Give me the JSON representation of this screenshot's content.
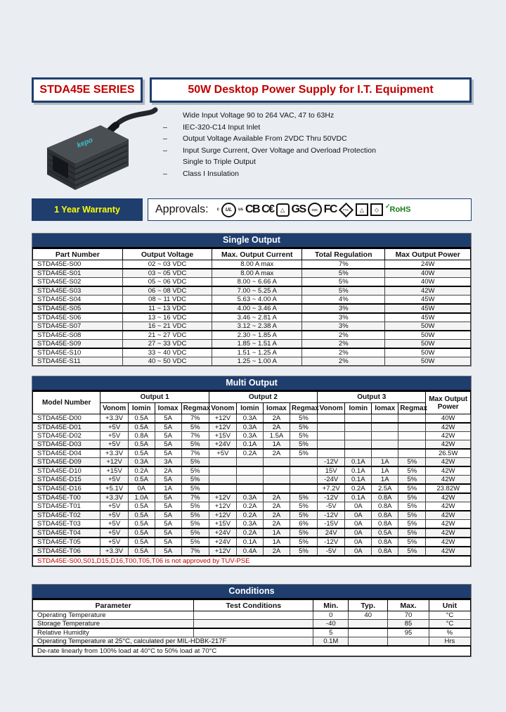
{
  "header": {
    "series_title": "STDA45E SERIES",
    "main_title": "50W Desktop Power Supply for I.T. Equipment"
  },
  "features": [
    {
      "dash": "",
      "text": "Wide Input Voltage 90 to 264 VAC, 47 to 63Hz"
    },
    {
      "dash": "–",
      "text": "IEC-320-C14 Input Inlet"
    },
    {
      "dash": "–",
      "text": "Output Voltage Available From 2VDC Thru 50VDC"
    },
    {
      "dash": "–",
      "text": "Input Surge Current, Over Voltage and Overload Protection"
    },
    {
      "dash": "",
      "text": "Single to Triple Output"
    },
    {
      "dash": "–",
      "text": "Class I Insulation"
    }
  ],
  "warranty": {
    "label": "1 Year Warranty"
  },
  "approvals": {
    "label": "Approvals:",
    "logos": [
      {
        "name": "c-mark-icon",
        "style": "tiny",
        "text": "c"
      },
      {
        "name": "ul-logo-icon",
        "style": "circle",
        "text": "UL"
      },
      {
        "name": "us-mark-icon",
        "style": "tiny",
        "text": "us"
      },
      {
        "name": "cb-logo-icon",
        "style": "letters",
        "text": "CB"
      },
      {
        "name": "ce-logo-icon",
        "style": "letters",
        "text": "C€"
      },
      {
        "name": "tuv-logo-icon",
        "style": "badge",
        "text": "△"
      },
      {
        "name": "gs-logo-icon",
        "style": "letters",
        "text": "GS"
      },
      {
        "name": "ccc-logo-icon",
        "style": "circle-sm",
        "text": "CCC"
      },
      {
        "name": "fcc-logo-icon",
        "style": "letters",
        "text": "FC"
      },
      {
        "name": "pse-diamond-logo-icon",
        "style": "diamond",
        "text": "PSE"
      },
      {
        "name": "pse-triangle-logo-icon",
        "style": "boxed",
        "text": "△"
      },
      {
        "name": "pse-rhombus-logo-icon",
        "style": "boxed",
        "text": "◇"
      },
      {
        "name": "rohs-check-icon",
        "style": "checkgreen",
        "text": "✓"
      },
      {
        "name": "rohs-logo-icon",
        "style": "rohs",
        "text": "RoHS"
      }
    ]
  },
  "single_output": {
    "title": "Single Output",
    "columns": [
      "Part Number",
      "Output Voltage",
      "Max. Output Current",
      "Total Regulation",
      "Max Output Power"
    ],
    "rows": [
      {
        "group": false,
        "cells": [
          "STDA45E-S00",
          "02 ~ 03 VDC",
          "8.00 A max",
          "7%",
          "24W"
        ]
      },
      {
        "group": true,
        "cells": [
          "STDA45E-S01",
          "03 ~ 05 VDC",
          "8.00 A max",
          "5%",
          "40W"
        ]
      },
      {
        "group": false,
        "cells": [
          "STDA45E-S02",
          "05 ~ 06 VDC",
          "8.00 ~ 6.66 A",
          "5%",
          "40W"
        ]
      },
      {
        "group": true,
        "cells": [
          "STDA45E-S03",
          "06 ~ 08 VDC",
          "7.00 ~ 5.25 A",
          "5%",
          "42W"
        ]
      },
      {
        "group": false,
        "cells": [
          "STDA45E-S04",
          "08 ~ 11 VDC",
          "5.63 ~ 4.00 A",
          "4%",
          "45W"
        ]
      },
      {
        "group": true,
        "cells": [
          "STDA45E-S05",
          "11 ~ 13 VDC",
          "4.00 ~ 3.46 A",
          "3%",
          "45W"
        ]
      },
      {
        "group": true,
        "cells": [
          "STDA45E-S06",
          "13 ~ 16 VDC",
          "3.46 ~ 2.81 A",
          "3%",
          "45W"
        ]
      },
      {
        "group": false,
        "cells": [
          "STDA45E-S07",
          "16 ~ 21 VDC",
          "3.12 ~ 2.38 A",
          "3%",
          "50W"
        ]
      },
      {
        "group": true,
        "cells": [
          "STDA45E-S08",
          "21 ~ 27 VDC",
          "2.30 ~ 1.85 A",
          "2%",
          "50W"
        ]
      },
      {
        "group": false,
        "cells": [
          "STDA45E-S09",
          "27 ~ 33 VDC",
          "1.85 ~ 1.51 A",
          "2%",
          "50W"
        ]
      },
      {
        "group": true,
        "cells": [
          "STDA45E-S10",
          "33 ~ 40 VDC",
          "1.51 ~ 1.25 A",
          "2%",
          "50W"
        ]
      },
      {
        "group": false,
        "cells": [
          "STDA45E-S11",
          "40 ~ 50 VDC",
          "1.25 ~ 1.00 A",
          "2%",
          "50W"
        ]
      }
    ]
  },
  "multi_output": {
    "title": "Multi Output",
    "model_header": "Model Number",
    "power_header": "Max Output Power",
    "groups": [
      "Output 1",
      "Output 2",
      "Output 3"
    ],
    "sub_columns": [
      "Vonom",
      "Iomin",
      "Iomax",
      "Regmax"
    ],
    "rows": [
      {
        "group": false,
        "cells": [
          "STDA45E-D00",
          "+3.3V",
          "0.5A",
          "5A",
          "7%",
          "+12V",
          "0.3A",
          "2A",
          "5%",
          "",
          "",
          "",
          "",
          "40W"
        ]
      },
      {
        "group": true,
        "cells": [
          "STDA45E-D01",
          "+5V",
          "0.5A",
          "5A",
          "5%",
          "+12V",
          "0.3A",
          "2A",
          "5%",
          "",
          "",
          "",
          "",
          "42W"
        ]
      },
      {
        "group": false,
        "cells": [
          "STDA45E-D02",
          "+5V",
          "0.8A",
          "5A",
          "7%",
          "+15V",
          "0.3A",
          "1.5A",
          "5%",
          "",
          "",
          "",
          "",
          "42W"
        ]
      },
      {
        "group": false,
        "cells": [
          "STDA45E-D03",
          "+5V",
          "0.5A",
          "5A",
          "5%",
          "+24V",
          "0.1A",
          "1A",
          "5%",
          "",
          "",
          "",
          "",
          "42W"
        ]
      },
      {
        "group": true,
        "cells": [
          "STDA45E-D04",
          "+3.3V",
          "0.5A",
          "5A",
          "7%",
          "+5V",
          "0.2A",
          "2A",
          "5%",
          "",
          "",
          "",
          "",
          "26.5W"
        ]
      },
      {
        "group": false,
        "cells": [
          "STDA45E-D09",
          "+12V",
          "0.3A",
          "3A",
          "5%",
          "",
          "",
          "",
          "",
          "-12V",
          "0.1A",
          "1A",
          "5%",
          "42W"
        ]
      },
      {
        "group": true,
        "cells": [
          "STDA45E-D10",
          "+15V",
          "0.2A",
          "2A",
          "5%",
          "",
          "",
          "",
          "",
          "15V",
          "0.1A",
          "1A",
          "5%",
          "42W"
        ]
      },
      {
        "group": false,
        "cells": [
          "STDA45E-D15",
          "+5V",
          "0.5A",
          "5A",
          "5%",
          "",
          "",
          "",
          "",
          "-24V",
          "0.1A",
          "1A",
          "5%",
          "42W"
        ]
      },
      {
        "group": true,
        "cells": [
          "STDA45E-D16",
          "+5.1V",
          "0A",
          "1A",
          "5%",
          "",
          "",
          "",
          "",
          "+7.2V",
          "0.2A",
          "2.5A",
          "5%",
          "23.82W"
        ]
      },
      {
        "group": true,
        "cells": [
          "STDA45E-T00",
          "+3.3V",
          "1.0A",
          "5A",
          "7%",
          "+12V",
          "0.3A",
          "2A",
          "5%",
          "-12V",
          "0.1A",
          "0.8A",
          "5%",
          "42W"
        ]
      },
      {
        "group": false,
        "cells": [
          "STDA45E-T01",
          "+5V",
          "0.5A",
          "5A",
          "5%",
          "+12V",
          "0.2A",
          "2A",
          "5%",
          "-5V",
          "0A",
          "0.8A",
          "5%",
          "42W"
        ]
      },
      {
        "group": true,
        "cells": [
          "STDA45E-T02",
          "+5V",
          "0.5A",
          "5A",
          "5%",
          "+12V",
          "0.2A",
          "2A",
          "5%",
          "-12V",
          "0A",
          "0.8A",
          "5%",
          "42W"
        ]
      },
      {
        "group": false,
        "cells": [
          "STDA45E-T03",
          "+5V",
          "0.5A",
          "5A",
          "5%",
          "+15V",
          "0.3A",
          "2A",
          "6%",
          "-15V",
          "0A",
          "0.8A",
          "5%",
          "42W"
        ]
      },
      {
        "group": true,
        "cells": [
          "STDA45E-T04",
          "+5V",
          "0.5A",
          "5A",
          "5%",
          "+24V",
          "0.2A",
          "1A",
          "5%",
          "24V",
          "0A",
          "0.5A",
          "5%",
          "42W"
        ]
      },
      {
        "group": true,
        "cells": [
          "STDA45E-T05",
          "+5V",
          "0.5A",
          "5A",
          "5%",
          "+24V",
          "0.1A",
          "1A",
          "5%",
          "-12V",
          "0A",
          "0.8A",
          "5%",
          "42W"
        ]
      },
      {
        "group": true,
        "cells": [
          "STDA45E-T06",
          "+3.3V",
          "0.5A",
          "5A",
          "7%",
          "+12V",
          "0.4A",
          "2A",
          "5%",
          "-5V",
          "0A",
          "0.8A",
          "5%",
          "42W"
        ]
      }
    ],
    "note": "STDA45E-S00,S01,D15,D16,T00,T05,T06 is not approved by TUV-PSE"
  },
  "conditions": {
    "title": "Conditions",
    "columns": [
      "Parameter",
      "Test Conditions",
      "Min.",
      "Typ.",
      "Max.",
      "Unit"
    ],
    "rows": [
      {
        "group": false,
        "merge": false,
        "param": "Operating Temperature",
        "test": "",
        "min": "0",
        "typ": "40",
        "max": "70",
        "unit": "°C"
      },
      {
        "group": false,
        "merge": false,
        "param": "Storage Temperature",
        "test": "",
        "min": "-40",
        "typ": "",
        "max": "85",
        "unit": "°C"
      },
      {
        "group": true,
        "merge": false,
        "param": "Relative Humidity",
        "test": "",
        "min": "5",
        "typ": "",
        "max": "95",
        "unit": "%"
      },
      {
        "group": false,
        "merge": true,
        "param": "Operating Temperature at 25°C, calculated per MIL-HDBK-217F",
        "test": "",
        "min": "0.1M",
        "typ": "",
        "max": "",
        "unit": "Hrs"
      }
    ],
    "note": "De-rate linearly from 100% load at 40°C to 50% load at 70°C"
  },
  "colors": {
    "navy": "#1f3e6e",
    "red": "#c00000",
    "yellow": "#ffff00",
    "rohs_green": "#1a7a1a",
    "page_bg": "#eaeef2"
  }
}
